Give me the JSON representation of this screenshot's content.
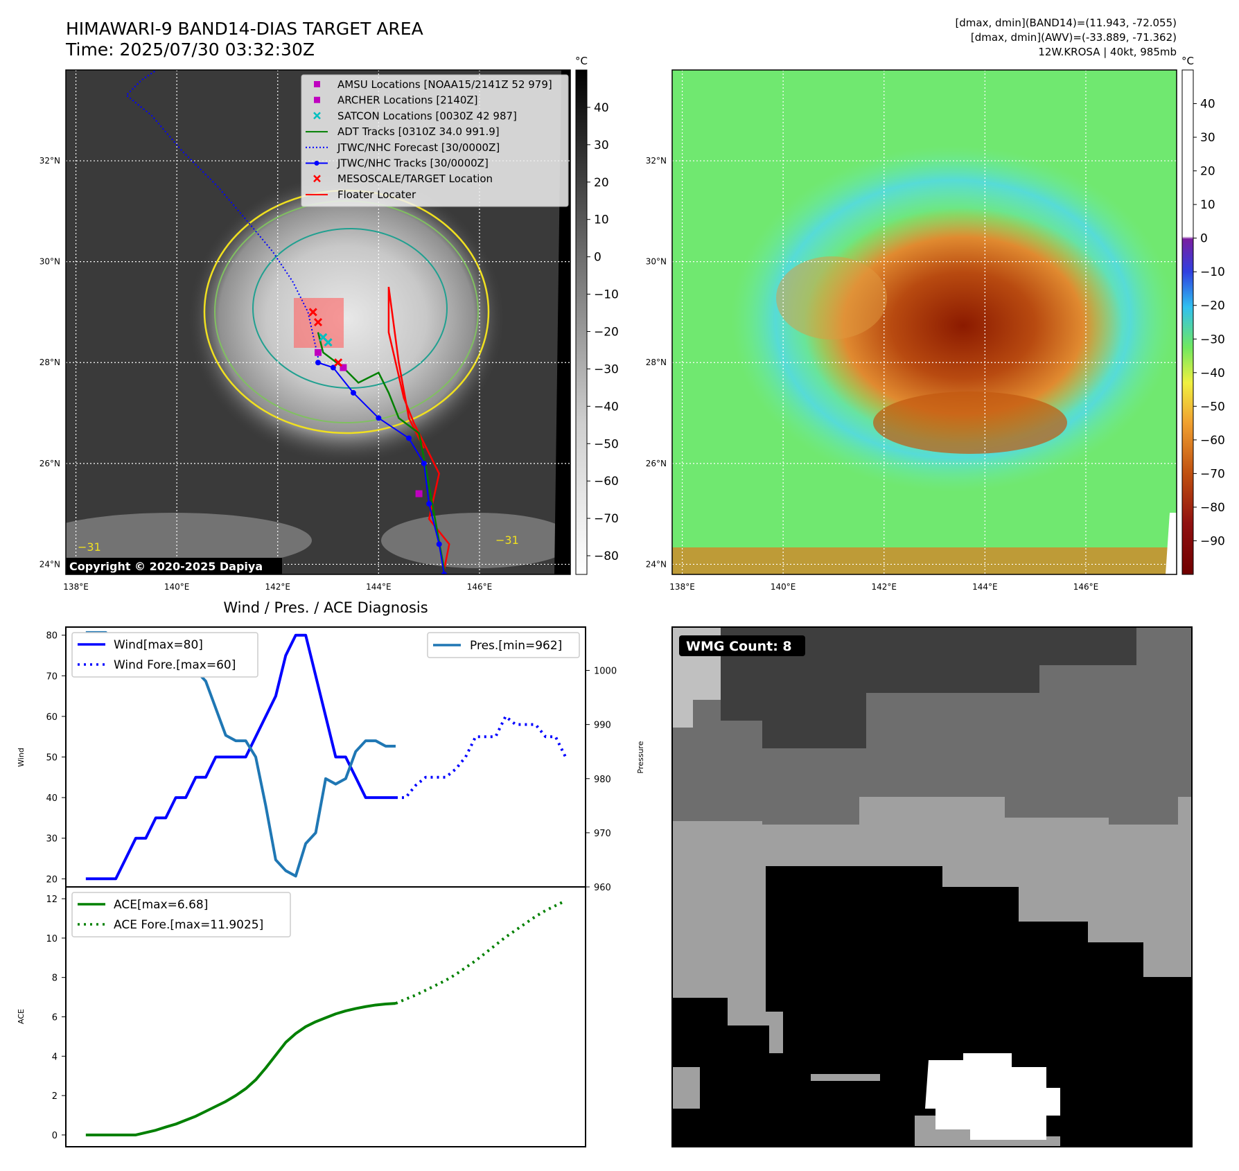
{
  "header": {
    "title_line1": "HIMAWARI-9 BAND14-DIAS TARGET AREA",
    "title_line2": "Time: 2025/07/30 03:32:30Z",
    "info_line1": "[dmax, dmin](BAND14)=(11.943, -72.055)",
    "info_line2": "[dmax, dmin](AWV)=(-33.889, -71.362)",
    "info_line3": "12W.KROSA | 40kt, 985mb"
  },
  "map_axes": {
    "lat_labels": [
      "32°N",
      "30°N",
      "28°N",
      "26°N",
      "24°N"
    ],
    "lat_values": [
      32,
      30,
      28,
      26,
      24
    ],
    "lon_labels": [
      "138°E",
      "140°E",
      "142°E",
      "144°E",
      "146°E"
    ],
    "lon_values": [
      138,
      140,
      142,
      144,
      146
    ],
    "lon_range": [
      137.8,
      147.8
    ],
    "lat_range": [
      23.8,
      33.8
    ]
  },
  "ir_panel": {
    "colorbar_unit": "°C",
    "colorbar_ticks": [
      "40",
      "30",
      "20",
      "10",
      "0",
      "−10",
      "−20",
      "−30",
      "−40",
      "−50",
      "−60",
      "−70",
      "−80"
    ],
    "colorbar_values": [
      40,
      30,
      20,
      10,
      0,
      -10,
      -20,
      -30,
      -40,
      -50,
      -60,
      -70,
      -80
    ],
    "colorbar_range": [
      -85,
      50
    ],
    "copyright": "Copyright © 2020-2025 Dapiya",
    "contour_label_left": "−31",
    "contour_label_right": "−31",
    "legend": [
      {
        "label": "AMSU Locations [NOAA15/2141Z 52 979]",
        "marker": "square",
        "color": "#bf00bf"
      },
      {
        "label": "ARCHER Locations [2140Z]",
        "marker": "square",
        "color": "#bf00bf"
      },
      {
        "label": "SATCON Locations [0030Z 42 987]",
        "marker": "x",
        "color": "#00bfbf"
      },
      {
        "label": "ADT Tracks [0310Z 34.0 991.9]",
        "marker": "line",
        "color": "#008000"
      },
      {
        "label": "JTWC/NHC Forecast [30/0000Z]",
        "marker": "dotted",
        "color": "#0000ff"
      },
      {
        "label": "JTWC/NHC Tracks [30/0000Z]",
        "marker": "line-dot",
        "color": "#0000ff"
      },
      {
        "label": "MESOSCALE/TARGET Location",
        "marker": "x",
        "color": "#ff0000"
      },
      {
        "label": "Floater Locater",
        "marker": "line",
        "color": "#ff0000"
      }
    ],
    "jtwc_track": [
      [
        145.3,
        23.8
      ],
      [
        145.2,
        24.4
      ],
      [
        145.0,
        25.2
      ],
      [
        144.9,
        26.0
      ],
      [
        144.6,
        26.5
      ],
      [
        144.0,
        26.9
      ],
      [
        143.5,
        27.4
      ],
      [
        143.1,
        27.9
      ],
      [
        142.8,
        28.0
      ]
    ],
    "jtwc_forecast": [
      [
        142.8,
        28.1
      ],
      [
        142.6,
        29.0
      ],
      [
        142.3,
        29.6
      ],
      [
        141.9,
        30.2
      ],
      [
        141.4,
        30.8
      ],
      [
        140.8,
        31.5
      ],
      [
        140.1,
        32.2
      ],
      [
        139.5,
        32.9
      ],
      [
        139.0,
        33.3
      ],
      [
        139.3,
        33.6
      ],
      [
        139.6,
        33.8
      ]
    ],
    "adt_track": [
      [
        145.3,
        23.9
      ],
      [
        145.1,
        25.0
      ],
      [
        144.9,
        26.1
      ],
      [
        144.8,
        26.6
      ],
      [
        144.4,
        26.9
      ],
      [
        144.2,
        27.4
      ],
      [
        144.0,
        27.8
      ],
      [
        143.6,
        27.6
      ],
      [
        143.3,
        27.9
      ],
      [
        142.9,
        28.2
      ],
      [
        142.8,
        28.6
      ]
    ],
    "floater_track": [
      [
        145.3,
        23.9
      ],
      [
        145.4,
        24.4
      ],
      [
        145.0,
        24.9
      ],
      [
        145.2,
        25.8
      ],
      [
        144.7,
        26.8
      ],
      [
        144.5,
        27.3
      ],
      [
        144.2,
        28.6
      ],
      [
        144.2,
        29.5
      ],
      [
        144.4,
        28.0
      ],
      [
        144.6,
        26.9
      ],
      [
        144.9,
        26.3
      ]
    ],
    "amsu_points": [
      [
        142.8,
        28.2
      ],
      [
        143.3,
        27.9
      ],
      [
        144.8,
        25.4
      ]
    ],
    "satcon_points": [
      [
        142.9,
        28.5
      ],
      [
        143.0,
        28.4
      ]
    ],
    "target_points": [
      [
        142.7,
        29.0
      ],
      [
        142.8,
        28.8
      ],
      [
        143.2,
        28.0
      ]
    ]
  },
  "awv_panel": {
    "colorbar_unit": "°C",
    "colorbar_ticks": [
      "40",
      "30",
      "20",
      "10",
      "0",
      "−10",
      "−20",
      "−30",
      "−40",
      "−50",
      "−60",
      "−70",
      "−80",
      "−90"
    ],
    "colorbar_values": [
      40,
      30,
      20,
      10,
      0,
      -10,
      -20,
      -30,
      -40,
      -50,
      -60,
      -70,
      -80,
      -90
    ],
    "colorbar_range": [
      -100,
      50
    ]
  },
  "chart_data": [
    {
      "type": "line",
      "title": "Wind / Pres. / ACE Diagnosis",
      "xlabel": "",
      "ylabel": "Wind",
      "ylabel_right": "Pressure",
      "ylim": [
        18,
        82
      ],
      "ylim_right": [
        960,
        1008
      ],
      "yticks": [
        20,
        30,
        40,
        50,
        60,
        70,
        80
      ],
      "yticks_right": [
        960,
        970,
        980,
        990,
        1000
      ],
      "x": [
        0,
        1,
        2,
        3,
        4,
        5,
        6,
        7,
        8,
        9,
        10,
        11,
        12,
        13,
        14,
        15,
        16,
        17,
        18,
        19,
        20,
        21,
        22,
        23,
        24,
        25,
        26,
        27,
        28,
        29,
        30,
        31,
        32,
        33,
        34,
        35,
        36,
        37,
        38,
        39,
        40,
        41,
        42,
        43,
        44,
        45,
        46,
        47,
        48
      ],
      "series": [
        {
          "name": "Wind[max=80]",
          "color": "#0000ff",
          "style": "solid",
          "x": [
            0,
            1,
            2,
            3,
            4,
            5,
            6,
            7,
            8,
            9,
            10,
            11,
            12,
            13,
            14,
            15,
            16,
            17,
            18,
            19,
            20,
            21,
            22,
            23,
            24,
            25,
            26,
            27,
            28,
            29,
            30,
            31
          ],
          "values": [
            20,
            20,
            20,
            20,
            25,
            30,
            30,
            35,
            35,
            40,
            40,
            45,
            45,
            50,
            50,
            50,
            50,
            55,
            60,
            65,
            75,
            80,
            80,
            70,
            60,
            50,
            50,
            45,
            40,
            40,
            40,
            40
          ]
        },
        {
          "name": "Wind Fore.[max=60]",
          "color": "#0000ff",
          "style": "dotted",
          "x": [
            31,
            32,
            33,
            34,
            35,
            36,
            37,
            38,
            39,
            40,
            41,
            42,
            43,
            44,
            45,
            46,
            47,
            48
          ],
          "values": [
            40,
            40,
            43,
            45,
            45,
            45,
            47,
            50,
            55,
            55,
            55,
            60,
            58,
            58,
            58,
            55,
            55,
            50
          ]
        },
        {
          "name": "Pres.[min=962]",
          "color": "#1f77b4",
          "style": "solid",
          "axis": "right",
          "x": [
            0,
            1,
            2,
            3,
            4,
            5,
            6,
            7,
            8,
            9,
            10,
            11,
            12,
            13,
            14,
            15,
            16,
            17,
            18,
            19,
            20,
            21,
            22,
            23,
            24,
            25,
            26,
            27,
            28,
            29,
            30,
            31
          ],
          "values": [
            1007,
            1007,
            1007,
            1005,
            1005,
            1004,
            1004,
            1002,
            1002,
            1000,
            1000,
            1000,
            998,
            993,
            988,
            987,
            987,
            984,
            975,
            965,
            963,
            962,
            968,
            970,
            980,
            979,
            980,
            985,
            987,
            987,
            986,
            986
          ]
        }
      ]
    },
    {
      "type": "line",
      "xlabel": "",
      "ylabel": "ACE",
      "ylim": [
        -0.6,
        12.6
      ],
      "yticks": [
        0,
        2,
        4,
        6,
        8,
        10,
        12
      ],
      "series": [
        {
          "name": "ACE[max=6.68]",
          "color": "#008000",
          "style": "solid",
          "x": [
            0,
            1,
            2,
            3,
            4,
            5,
            6,
            7,
            8,
            9,
            10,
            11,
            12,
            13,
            14,
            15,
            16,
            17,
            18,
            19,
            20,
            21,
            22,
            23,
            24,
            25,
            26,
            27,
            28,
            29,
            30,
            31
          ],
          "values": [
            0,
            0,
            0,
            0,
            0,
            0,
            0.12,
            0.24,
            0.4,
            0.55,
            0.75,
            0.95,
            1.2,
            1.45,
            1.7,
            2.0,
            2.35,
            2.8,
            3.4,
            4.05,
            4.7,
            5.15,
            5.5,
            5.75,
            5.95,
            6.15,
            6.3,
            6.42,
            6.52,
            6.6,
            6.65,
            6.68
          ]
        },
        {
          "name": "ACE Fore.[max=11.9025]",
          "color": "#008000",
          "style": "dotted",
          "x": [
            31,
            32,
            33,
            34,
            35,
            36,
            37,
            38,
            39,
            40,
            41,
            42,
            43,
            44,
            45,
            46,
            47,
            48
          ],
          "values": [
            6.68,
            6.9,
            7.1,
            7.35,
            7.6,
            7.85,
            8.15,
            8.5,
            8.85,
            9.25,
            9.65,
            10.05,
            10.4,
            10.75,
            11.1,
            11.4,
            11.65,
            11.9
          ]
        }
      ]
    }
  ],
  "wmg_panel": {
    "label": "WMG Count: 8"
  }
}
